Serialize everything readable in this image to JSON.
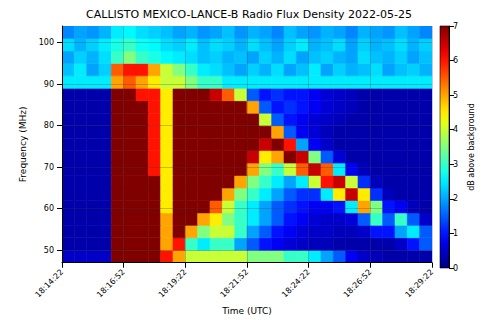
{
  "chart_data": {
    "type": "heatmap",
    "title": "CALLISTO MEXICO-LANCE-B Radio Flux Density 2022-05-25",
    "x_label": "Time (UTC)",
    "y_label": "Frequency (MHz)",
    "x": [
      65677,
      65707,
      65737,
      65767,
      65797,
      65827,
      65857,
      65887,
      65917,
      65947,
      65977,
      66007,
      66037,
      66067,
      66097,
      66127,
      66157,
      66187,
      66217,
      66247,
      66277,
      66307,
      66337,
      66367,
      66397,
      66427,
      66457,
      66487,
      66517,
      66547
    ],
    "y": [
      48.5,
      51.5,
      54.5,
      57.5,
      60.5,
      63.5,
      66.5,
      69.5,
      72.5,
      75.5,
      78.5,
      81.5,
      84.5,
      87.5,
      90.5,
      93.5,
      96.5,
      99.5,
      102.5
    ],
    "values": [
      [
        0.5,
        0.5,
        0.5,
        0.5,
        7,
        7,
        7,
        7,
        6,
        5,
        4,
        4,
        4,
        4,
        4,
        3.5,
        3.5,
        3.5,
        3,
        3,
        2.5,
        2,
        1.5,
        0.8,
        0.5,
        0.4,
        0.3,
        0.3,
        0.3,
        0.3
      ],
      [
        0.3,
        0.3,
        0.3,
        0.3,
        7,
        7,
        7,
        7,
        5,
        6,
        3,
        2.5,
        3,
        3,
        2,
        1.5,
        1,
        0.8,
        0.6,
        0.5,
        0.4,
        0.4,
        0.3,
        0.3,
        0.3,
        0.3,
        0.3,
        0.5,
        1,
        1.5
      ],
      [
        0.3,
        0.3,
        0.3,
        0.3,
        7,
        7,
        7,
        7,
        5,
        7,
        5,
        3.5,
        4,
        4,
        3,
        2,
        1.5,
        1,
        0.8,
        0.6,
        0.5,
        0.5,
        0.4,
        0.4,
        0.5,
        1,
        1,
        2,
        2.5,
        1.5
      ],
      [
        0.3,
        0.3,
        0.3,
        0.3,
        7,
        7,
        7,
        7,
        5,
        7,
        7,
        5,
        4.5,
        3.5,
        3,
        2.5,
        2,
        1.5,
        1,
        0.8,
        0.6,
        0.5,
        0.5,
        0.6,
        1.5,
        3,
        1.5,
        3,
        1.5,
        0.5
      ],
      [
        0.3,
        0.3,
        0.3,
        0.3,
        7,
        7,
        7,
        7,
        4.5,
        7,
        7,
        7,
        5.5,
        4,
        3,
        2.5,
        2,
        1.5,
        1.2,
        1,
        0.8,
        0.8,
        1,
        2.5,
        5,
        3.5,
        1,
        0.8,
        0.4,
        0.3
      ],
      [
        0.3,
        0.3,
        0.3,
        0.3,
        7,
        7,
        7,
        7,
        4.5,
        7,
        7,
        7,
        7,
        5,
        3.5,
        3,
        2.5,
        2,
        1.5,
        1.2,
        1.2,
        2.5,
        4.5,
        6.5,
        4.5,
        1.2,
        0.4,
        0.3,
        0.3,
        0.3
      ],
      [
        0.3,
        0.3,
        0.3,
        0.3,
        7,
        7,
        7,
        7,
        4.5,
        7,
        7,
        7,
        7,
        7,
        5,
        3.5,
        3,
        2.5,
        2,
        2.5,
        4,
        6,
        6.5,
        4,
        1.2,
        0.4,
        0.3,
        0.3,
        0.3,
        0.3
      ],
      [
        0.3,
        0.3,
        0.3,
        0.3,
        7,
        7,
        7,
        6,
        4.5,
        7,
        7,
        7,
        7,
        7,
        7,
        5,
        3.5,
        3,
        4,
        5.5,
        6.5,
        5.5,
        2.5,
        0.8,
        0.4,
        0.3,
        0.3,
        0.3,
        0.3,
        0.3
      ],
      [
        0.3,
        0.3,
        0.3,
        0.3,
        7,
        7,
        7,
        6,
        4.5,
        7,
        7,
        7,
        7,
        7,
        7,
        6.5,
        4.5,
        5,
        7,
        6.5,
        3.5,
        1.5,
        0.6,
        0.3,
        0.3,
        0.3,
        0.3,
        0.3,
        0.3,
        0.3
      ],
      [
        0.3,
        0.3,
        0.3,
        0.3,
        7,
        7,
        7,
        6,
        4.5,
        7,
        7,
        7,
        7,
        7,
        7,
        7,
        6.5,
        7,
        6,
        2,
        0.8,
        0.5,
        0.3,
        0.3,
        0.3,
        0.3,
        0.3,
        0.3,
        0.3,
        0.3
      ],
      [
        0.3,
        0.3,
        0.3,
        0.3,
        7,
        7,
        7,
        6,
        4.5,
        7,
        7,
        7,
        7,
        7,
        7,
        7,
        7,
        5,
        1.5,
        0.8,
        0.6,
        0.4,
        0.3,
        0.3,
        0.3,
        0.3,
        0.3,
        0.3,
        0.3,
        0.3
      ],
      [
        0.3,
        0.3,
        0.3,
        0.3,
        7,
        7,
        7,
        6,
        4.5,
        7,
        7,
        7,
        7,
        7,
        7,
        7,
        4,
        1.5,
        1,
        0.8,
        0.6,
        0.5,
        0.4,
        0.3,
        0.3,
        0.3,
        0.3,
        0.3,
        0.3,
        0.3
      ],
      [
        0.3,
        0.3,
        0.3,
        0.3,
        7,
        7,
        7,
        6,
        4.5,
        7,
        7,
        7,
        7,
        7,
        7,
        5,
        1.5,
        1,
        1.2,
        1,
        0.8,
        0.6,
        0.5,
        0.4,
        0.3,
        0.3,
        0.3,
        0.3,
        0.3,
        0.3
      ],
      [
        0.3,
        0.3,
        0.3,
        0.3,
        7,
        7,
        6,
        6,
        4.5,
        7,
        7,
        7,
        6.5,
        5.5,
        4,
        1.5,
        1,
        1.2,
        1,
        1,
        0.8,
        0.6,
        0.5,
        0.4,
        0.3,
        0.3,
        0.3,
        0.3,
        0.3,
        0.3
      ],
      [
        2.5,
        2.5,
        2.5,
        2.5,
        5,
        5.5,
        5,
        4.5,
        4,
        4,
        3.5,
        3,
        3,
        2.5,
        2.5,
        2.5,
        2.5,
        2.5,
        2.5,
        2.5,
        2.5,
        2.5,
        2.5,
        2.5,
        2.5,
        2.5,
        2.5,
        2.5,
        2.5,
        2.5
      ],
      [
        2.2,
        2.5,
        2,
        2.3,
        5.5,
        6,
        6,
        5,
        4,
        3.5,
        3,
        2.5,
        2.4,
        2.2,
        2,
        2.3,
        2.1,
        2.4,
        2,
        2.2,
        2.5,
        2,
        2.3,
        2.1,
        2.2,
        2.4,
        2,
        2.2,
        2.3,
        2.1
      ],
      [
        2,
        2.3,
        2.1,
        2.4,
        3,
        3.5,
        3,
        2.8,
        2.6,
        2.5,
        2.4,
        2.2,
        2.3,
        2.1,
        2.2,
        2,
        2.3,
        2.1,
        2.4,
        2,
        2.2,
        2.3,
        2.1,
        2,
        2.4,
        2.2,
        2.1,
        2.3,
        2,
        2.2
      ],
      [
        2.4,
        2.1,
        2.3,
        2.5,
        2.8,
        3,
        2.7,
        2.6,
        2.4,
        2.3,
        2.5,
        2.2,
        2.4,
        2.3,
        2.1,
        2.4,
        2.2,
        2,
        2.3,
        2.5,
        2.1,
        2.2,
        2.4,
        2,
        2.3,
        2.1,
        2.2,
        2.4,
        2.1,
        2.3
      ],
      [
        1.8,
        2,
        1.9,
        2.1,
        2.5,
        2.6,
        2.4,
        2.3,
        2.2,
        2,
        2.1,
        1.9,
        2,
        2.2,
        1.9,
        2.1,
        2,
        1.8,
        2.2,
        2,
        1.9,
        2.1,
        2,
        1.8,
        2.1,
        2,
        1.9,
        2.2,
        2,
        1.8
      ]
    ],
    "xlim": [
      65662,
      66562
    ],
    "xticks": [
      {
        "value": 65662,
        "label": "18:14:22"
      },
      {
        "value": 65812,
        "label": "18:16:52"
      },
      {
        "value": 65962,
        "label": "18:19:22"
      },
      {
        "value": 66112,
        "label": "18:21:52"
      },
      {
        "value": 66262,
        "label": "18:24:22"
      },
      {
        "value": 66412,
        "label": "18:26:52"
      },
      {
        "value": 66562,
        "label": "18:29:22"
      }
    ],
    "ylim": [
      47,
      104
    ],
    "yticks": [
      50,
      60,
      70,
      80,
      90,
      100
    ],
    "colorbar": {
      "label": "dB above background",
      "lim": [
        0,
        7
      ],
      "ticks": [
        0,
        1,
        2,
        3,
        4,
        5,
        6,
        7
      ]
    },
    "grid": true
  }
}
